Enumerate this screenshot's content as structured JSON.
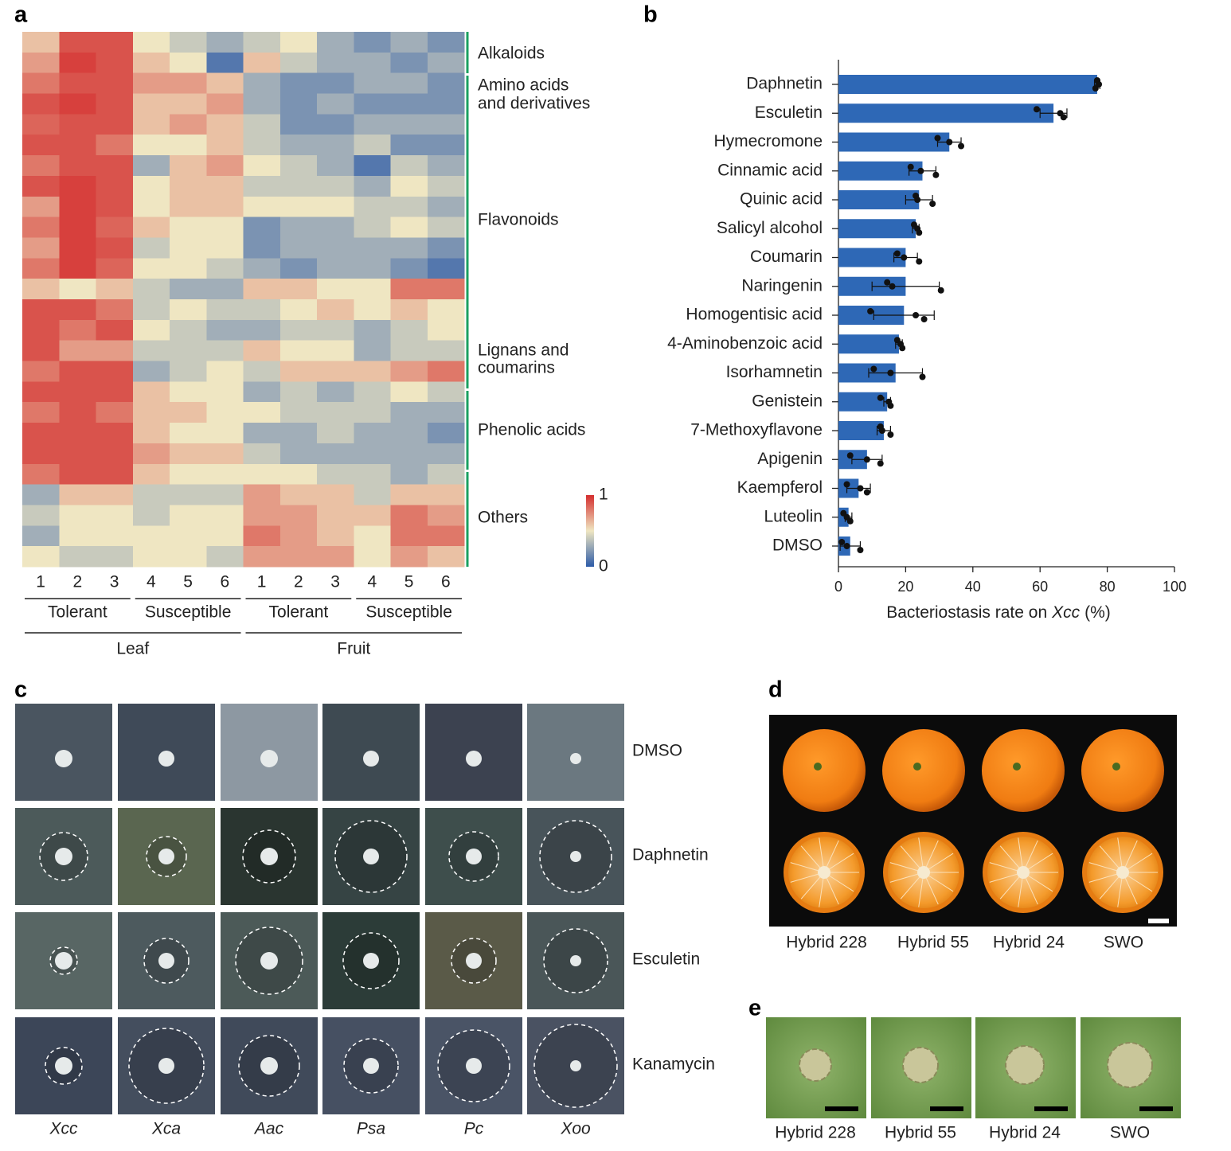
{
  "panel_labels": [
    "a",
    "b",
    "c",
    "d",
    "e"
  ],
  "chart_data": [
    {
      "type": "heatmap",
      "columns": [
        "1",
        "2",
        "3",
        "4",
        "5",
        "6",
        "1",
        "2",
        "3",
        "4",
        "5",
        "6"
      ],
      "groups": [
        "Tolerant",
        "Susceptible",
        "Tolerant",
        "Susceptible"
      ],
      "tissues": [
        "Leaf",
        "Fruit"
      ],
      "classes": [
        [
          "Alkaloids"
        ],
        [
          "Amino acids",
          "and derivatives"
        ],
        [
          "Flavonoids"
        ],
        [
          "Lignans and",
          "coumarins"
        ],
        [
          "Phenolic acids"
        ],
        [
          "Others"
        ]
      ],
      "colors": [
        "#2d5ba8",
        "#efe6c2",
        "#d42e2e"
      ],
      "zlim": [
        0,
        1
      ],
      "zticks": [
        0,
        1
      ],
      "values": [
        [
          0.6,
          0.9,
          0.9,
          0.5,
          0.4,
          0.3,
          0.4,
          0.5,
          0.3,
          0.2,
          0.3,
          0.2
        ],
        [
          0.7,
          0.95,
          0.9,
          0.6,
          0.5,
          0.1,
          0.6,
          0.4,
          0.3,
          0.3,
          0.2,
          0.3
        ],
        [
          0.8,
          0.9,
          0.9,
          0.7,
          0.7,
          0.6,
          0.3,
          0.2,
          0.2,
          0.3,
          0.3,
          0.2
        ],
        [
          0.9,
          0.95,
          0.9,
          0.6,
          0.6,
          0.7,
          0.3,
          0.2,
          0.3,
          0.2,
          0.2,
          0.2
        ],
        [
          0.85,
          0.9,
          0.9,
          0.6,
          0.7,
          0.6,
          0.4,
          0.2,
          0.2,
          0.3,
          0.3,
          0.3
        ],
        [
          0.9,
          0.9,
          0.8,
          0.5,
          0.5,
          0.6,
          0.4,
          0.3,
          0.3,
          0.4,
          0.2,
          0.2
        ],
        [
          0.8,
          0.9,
          0.9,
          0.3,
          0.6,
          0.7,
          0.5,
          0.4,
          0.3,
          0.1,
          0.4,
          0.3
        ],
        [
          0.9,
          0.95,
          0.9,
          0.5,
          0.6,
          0.6,
          0.4,
          0.4,
          0.4,
          0.3,
          0.5,
          0.4
        ],
        [
          0.7,
          0.95,
          0.9,
          0.5,
          0.6,
          0.6,
          0.5,
          0.5,
          0.5,
          0.4,
          0.4,
          0.3
        ],
        [
          0.8,
          0.95,
          0.85,
          0.6,
          0.5,
          0.5,
          0.2,
          0.3,
          0.3,
          0.4,
          0.5,
          0.4
        ],
        [
          0.7,
          0.95,
          0.9,
          0.4,
          0.5,
          0.5,
          0.2,
          0.3,
          0.3,
          0.3,
          0.3,
          0.2
        ],
        [
          0.8,
          0.95,
          0.85,
          0.5,
          0.5,
          0.4,
          0.3,
          0.2,
          0.3,
          0.3,
          0.2,
          0.1
        ],
        [
          0.6,
          0.5,
          0.6,
          0.4,
          0.3,
          0.3,
          0.6,
          0.6,
          0.5,
          0.5,
          0.8,
          0.8
        ],
        [
          0.9,
          0.9,
          0.8,
          0.4,
          0.5,
          0.4,
          0.4,
          0.5,
          0.6,
          0.5,
          0.6,
          0.5
        ],
        [
          0.9,
          0.8,
          0.9,
          0.5,
          0.4,
          0.3,
          0.3,
          0.4,
          0.4,
          0.3,
          0.4,
          0.5
        ],
        [
          0.9,
          0.7,
          0.7,
          0.4,
          0.4,
          0.4,
          0.6,
          0.5,
          0.5,
          0.3,
          0.4,
          0.4
        ],
        [
          0.8,
          0.9,
          0.9,
          0.3,
          0.4,
          0.5,
          0.4,
          0.6,
          0.6,
          0.6,
          0.7,
          0.8
        ],
        [
          0.9,
          0.9,
          0.9,
          0.6,
          0.5,
          0.5,
          0.3,
          0.4,
          0.3,
          0.4,
          0.5,
          0.4
        ],
        [
          0.8,
          0.9,
          0.8,
          0.6,
          0.6,
          0.5,
          0.5,
          0.4,
          0.4,
          0.4,
          0.3,
          0.3
        ],
        [
          0.9,
          0.9,
          0.9,
          0.6,
          0.5,
          0.5,
          0.3,
          0.3,
          0.4,
          0.3,
          0.3,
          0.2
        ],
        [
          0.9,
          0.9,
          0.9,
          0.7,
          0.6,
          0.6,
          0.4,
          0.3,
          0.3,
          0.3,
          0.3,
          0.3
        ],
        [
          0.8,
          0.9,
          0.9,
          0.6,
          0.5,
          0.5,
          0.5,
          0.5,
          0.4,
          0.4,
          0.3,
          0.4
        ],
        [
          0.3,
          0.6,
          0.6,
          0.4,
          0.4,
          0.4,
          0.7,
          0.6,
          0.6,
          0.4,
          0.6,
          0.6
        ],
        [
          0.4,
          0.5,
          0.5,
          0.4,
          0.5,
          0.5,
          0.7,
          0.7,
          0.6,
          0.6,
          0.8,
          0.7
        ],
        [
          0.3,
          0.5,
          0.5,
          0.5,
          0.5,
          0.5,
          0.8,
          0.7,
          0.6,
          0.5,
          0.8,
          0.8
        ],
        [
          0.5,
          0.4,
          0.4,
          0.5,
          0.5,
          0.4,
          0.7,
          0.7,
          0.7,
          0.5,
          0.7,
          0.6
        ]
      ]
    },
    {
      "type": "bar",
      "orientation": "horizontal",
      "categories": [
        "Daphnetin",
        "Esculetin",
        "Hymecromone",
        "Cinnamic acid",
        "Quinic acid",
        "Salicyl alcohol",
        "Coumarin",
        "Naringenin",
        "Homogentisic acid",
        "4-Aminobenzoic acid",
        "Isorhamnetin",
        "Genistein",
        "7-Methoxyflavone",
        "Apigenin",
        "Kaempferol",
        "Luteolin",
        "DMSO"
      ],
      "values": [
        77,
        64,
        33,
        25,
        24,
        23,
        20,
        20,
        19.5,
        18,
        17,
        14.5,
        13.5,
        8.5,
        6,
        3,
        3.5
      ],
      "errors": [
        0.8,
        4,
        3.5,
        4,
        4,
        1,
        3.5,
        10,
        9,
        1,
        8,
        1,
        2,
        4.5,
        3.5,
        1,
        3
      ],
      "points": [
        [
          77,
          77.5,
          76.5
        ],
        [
          59,
          66,
          67
        ],
        [
          29.5,
          33,
          36.5
        ],
        [
          21.5,
          24.5,
          29
        ],
        [
          23,
          23.5,
          28
        ],
        [
          22.5,
          23.5,
          24
        ],
        [
          17.5,
          19.5,
          24
        ],
        [
          14.5,
          16,
          30.5
        ],
        [
          9.5,
          23,
          25.5
        ],
        [
          17.5,
          18.5,
          19
        ],
        [
          10.5,
          15.5,
          25
        ],
        [
          12.5,
          15,
          15.5
        ],
        [
          12.5,
          13,
          15.5
        ],
        [
          3.5,
          8.5,
          12.5
        ],
        [
          2.5,
          6.5,
          8.5
        ],
        [
          1.5,
          2.5,
          3.5
        ],
        [
          1,
          2.5,
          6.5
        ]
      ],
      "color": "#2e68b6",
      "xlim": [
        0,
        100
      ],
      "xticks": [
        0,
        20,
        40,
        60,
        80,
        100
      ],
      "xlabel": [
        "Bacteriostasis rate on",
        "Xcc",
        "(%)"
      ]
    }
  ],
  "panel_c": {
    "columns": [
      "Xcc",
      "Xca",
      "Aac",
      "Psa",
      "Pc",
      "Xoo"
    ],
    "rows": [
      "DMSO",
      "Daphnetin",
      "Esculetin",
      "Kanamycin"
    ]
  },
  "panel_d": {
    "labels": [
      "Hybrid 228",
      "Hybrid 55",
      "Hybrid 24",
      "SWO"
    ]
  },
  "panel_e": {
    "labels": [
      "Hybrid 228",
      "Hybrid 55",
      "Hybrid 24",
      "SWO"
    ]
  }
}
